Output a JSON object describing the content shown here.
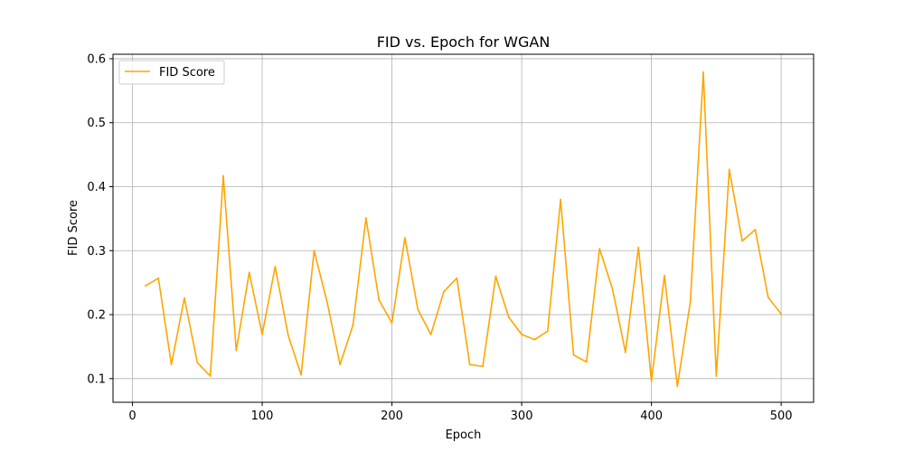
{
  "chart_data": {
    "type": "line",
    "title": "FID vs. Epoch for WGAN",
    "xlabel": "Epoch",
    "ylabel": "FID Score",
    "xlim": [
      -15,
      525
    ],
    "ylim": [
      0.063,
      0.607
    ],
    "xticks": [
      0,
      100,
      200,
      300,
      400,
      500
    ],
    "yticks": [
      0.1,
      0.2,
      0.3,
      0.4,
      0.5,
      0.6
    ],
    "xtick_labels": [
      "0",
      "100",
      "200",
      "300",
      "400",
      "500"
    ],
    "ytick_labels": [
      "0.1",
      "0.2",
      "0.3",
      "0.4",
      "0.5",
      "0.6"
    ],
    "grid": true,
    "legend_position": "top-left",
    "series": [
      {
        "name": "FID Score",
        "color": "#ffa500",
        "x": [
          10,
          20,
          30,
          40,
          50,
          60,
          70,
          80,
          90,
          100,
          110,
          120,
          130,
          140,
          150,
          160,
          170,
          180,
          190,
          200,
          210,
          220,
          230,
          240,
          250,
          260,
          270,
          280,
          290,
          300,
          310,
          320,
          330,
          340,
          350,
          360,
          370,
          380,
          390,
          400,
          410,
          420,
          430,
          440,
          450,
          460,
          470,
          480,
          490,
          500
        ],
        "values": [
          0.245,
          0.257,
          0.122,
          0.226,
          0.125,
          0.104,
          0.417,
          0.144,
          0.266,
          0.169,
          0.275,
          0.168,
          0.106,
          0.3,
          0.22,
          0.122,
          0.184,
          0.351,
          0.223,
          0.187,
          0.32,
          0.208,
          0.169,
          0.236,
          0.257,
          0.122,
          0.119,
          0.26,
          0.196,
          0.169,
          0.161,
          0.174,
          0.38,
          0.137,
          0.126,
          0.303,
          0.24,
          0.141,
          0.305,
          0.096,
          0.261,
          0.088,
          0.22,
          0.579,
          0.104,
          0.427,
          0.315,
          0.333,
          0.227,
          0.201
        ]
      }
    ]
  }
}
